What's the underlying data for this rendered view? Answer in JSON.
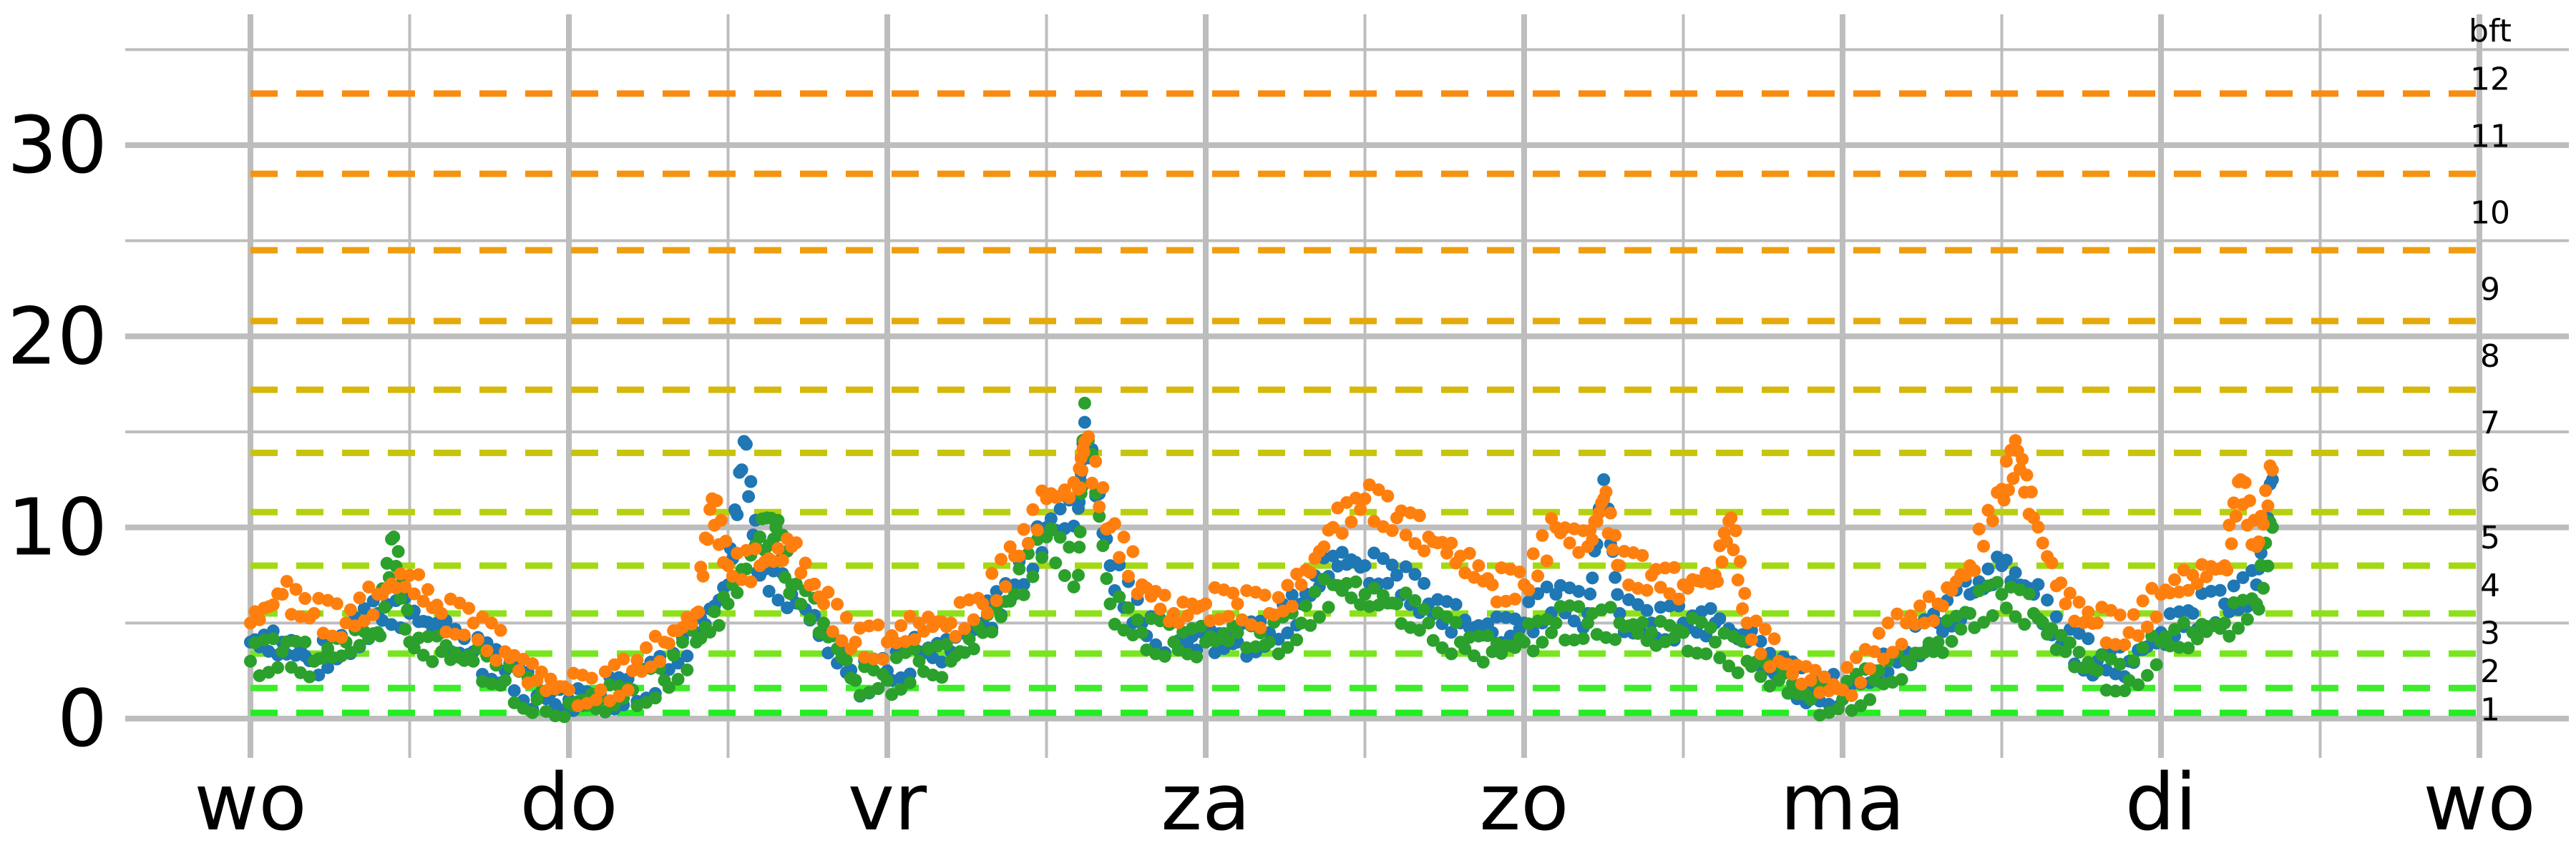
{
  "chart_data": {
    "type": "scatter",
    "title": "",
    "xlabel": "",
    "ylabel": "",
    "ylim": [
      -1.5,
      36
    ],
    "xlim": [
      0,
      7.5
    ],
    "y_ticks": [
      0,
      10,
      20,
      30
    ],
    "x_tick_labels": [
      "wo",
      "do",
      "vr",
      "za",
      "zo",
      "ma",
      "di",
      "wo"
    ],
    "x_ticks": [
      0,
      1,
      2,
      3,
      4,
      5,
      6,
      7
    ],
    "grid": true,
    "legend": "none",
    "beaufort": {
      "unit_label": "bft",
      "levels": [
        {
          "label": "1",
          "value": 0.3,
          "color": "#22ee22"
        },
        {
          "label": "2",
          "value": 1.6,
          "color": "#3cee2a"
        },
        {
          "label": "3",
          "value": 3.4,
          "color": "#78e61e"
        },
        {
          "label": "4",
          "value": 5.5,
          "color": "#8ee01a"
        },
        {
          "label": "5",
          "value": 8.0,
          "color": "#a4d812"
        },
        {
          "label": "6",
          "value": 10.8,
          "color": "#b8d010"
        },
        {
          "label": "7",
          "value": 13.9,
          "color": "#c6c40c"
        },
        {
          "label": "8",
          "value": 17.2,
          "color": "#d6b80a"
        },
        {
          "label": "9",
          "value": 20.8,
          "color": "#e4aa0c"
        },
        {
          "label": "10",
          "value": 24.5,
          "color": "#ef9e0e"
        },
        {
          "label": "11",
          "value": 28.5,
          "color": "#f49410"
        },
        {
          "label": "12",
          "value": 32.7,
          "color": "#f78c10"
        }
      ],
      "label_positions": [
        0.5,
        2.5,
        4.5,
        7.0,
        9.5,
        12.5,
        15.5,
        19.0,
        22.5,
        26.5,
        30.5,
        33.5
      ]
    },
    "series": [
      {
        "color": "#1f77b4",
        "points": [
          [
            0.0,
            4.0
          ],
          [
            0.1,
            4.0
          ],
          [
            0.2,
            3.0
          ],
          [
            0.3,
            4.0
          ],
          [
            0.4,
            5.5
          ],
          [
            0.5,
            5.5
          ],
          [
            0.6,
            4.5
          ],
          [
            0.7,
            3.5
          ],
          [
            0.8,
            2.5
          ],
          [
            0.9,
            1.2
          ],
          [
            1.0,
            1.0
          ],
          [
            1.1,
            1.2
          ],
          [
            1.2,
            1.5
          ],
          [
            1.3,
            2.5
          ],
          [
            1.4,
            4.5
          ],
          [
            1.5,
            7.0
          ],
          [
            1.55,
            14.5
          ],
          [
            1.6,
            7.5
          ],
          [
            1.7,
            6.5
          ],
          [
            1.8,
            4.5
          ],
          [
            1.9,
            2.0
          ],
          [
            2.0,
            2.5
          ],
          [
            2.1,
            3.5
          ],
          [
            2.2,
            3.5
          ],
          [
            2.3,
            5.0
          ],
          [
            2.4,
            7.0
          ],
          [
            2.5,
            10.0
          ],
          [
            2.6,
            11.0
          ],
          [
            2.62,
            15.5
          ],
          [
            2.7,
            8.0
          ],
          [
            2.8,
            5.0
          ],
          [
            2.9,
            4.0
          ],
          [
            3.0,
            4.0
          ],
          [
            3.1,
            4.0
          ],
          [
            3.2,
            4.5
          ],
          [
            3.3,
            6.0
          ],
          [
            3.4,
            8.5
          ],
          [
            3.5,
            8.0
          ],
          [
            3.6,
            7.5
          ],
          [
            3.7,
            6.0
          ],
          [
            3.8,
            5.0
          ],
          [
            3.9,
            4.5
          ],
          [
            4.0,
            5.0
          ],
          [
            4.1,
            6.5
          ],
          [
            4.2,
            5.5
          ],
          [
            4.25,
            12.5
          ],
          [
            4.3,
            5.5
          ],
          [
            4.4,
            5.0
          ],
          [
            4.5,
            5.0
          ],
          [
            4.6,
            5.0
          ],
          [
            4.7,
            4.0
          ],
          [
            4.8,
            2.5
          ],
          [
            4.9,
            1.5
          ],
          [
            5.0,
            1.5
          ],
          [
            5.1,
            2.5
          ],
          [
            5.2,
            3.5
          ],
          [
            5.3,
            5.0
          ],
          [
            5.4,
            6.5
          ],
          [
            5.5,
            8.0
          ],
          [
            5.6,
            6.5
          ],
          [
            5.7,
            4.0
          ],
          [
            5.8,
            3.0
          ],
          [
            5.9,
            3.0
          ],
          [
            6.0,
            4.5
          ],
          [
            6.1,
            5.5
          ],
          [
            6.2,
            6.0
          ],
          [
            6.3,
            7.0
          ],
          [
            6.35,
            12.5
          ]
        ]
      },
      {
        "color": "#2ca02c",
        "points": [
          [
            0.0,
            3.0
          ],
          [
            0.1,
            3.5
          ],
          [
            0.2,
            3.0
          ],
          [
            0.3,
            4.0
          ],
          [
            0.4,
            4.5
          ],
          [
            0.45,
            9.5
          ],
          [
            0.5,
            4.0
          ],
          [
            0.6,
            3.5
          ],
          [
            0.7,
            3.0
          ],
          [
            0.8,
            2.0
          ],
          [
            0.9,
            1.0
          ],
          [
            1.0,
            0.8
          ],
          [
            1.1,
            1.0
          ],
          [
            1.2,
            1.5
          ],
          [
            1.3,
            2.0
          ],
          [
            1.4,
            4.0
          ],
          [
            1.5,
            6.0
          ],
          [
            1.6,
            9.5
          ],
          [
            1.65,
            10.0
          ],
          [
            1.7,
            7.0
          ],
          [
            1.8,
            5.0
          ],
          [
            1.9,
            2.0
          ],
          [
            2.0,
            2.0
          ],
          [
            2.1,
            3.0
          ],
          [
            2.2,
            3.0
          ],
          [
            2.3,
            4.5
          ],
          [
            2.4,
            6.5
          ],
          [
            2.5,
            9.5
          ],
          [
            2.6,
            7.5
          ],
          [
            2.62,
            16.5
          ],
          [
            2.7,
            6.0
          ],
          [
            2.8,
            4.5
          ],
          [
            2.9,
            4.0
          ],
          [
            3.0,
            4.0
          ],
          [
            3.1,
            4.5
          ],
          [
            3.2,
            4.0
          ],
          [
            3.3,
            5.0
          ],
          [
            3.4,
            7.0
          ],
          [
            3.5,
            6.5
          ],
          [
            3.6,
            6.0
          ],
          [
            3.7,
            5.0
          ],
          [
            3.8,
            4.0
          ],
          [
            3.9,
            3.5
          ],
          [
            4.0,
            4.0
          ],
          [
            4.1,
            5.0
          ],
          [
            4.2,
            5.0
          ],
          [
            4.3,
            5.0
          ],
          [
            4.4,
            4.5
          ],
          [
            4.5,
            4.5
          ],
          [
            4.6,
            4.0
          ],
          [
            4.7,
            3.0
          ],
          [
            4.8,
            2.0
          ],
          [
            4.9,
            1.0
          ],
          [
            5.0,
            1.0
          ],
          [
            5.1,
            2.0
          ],
          [
            5.2,
            3.0
          ],
          [
            5.3,
            4.0
          ],
          [
            5.4,
            5.5
          ],
          [
            5.5,
            6.5
          ],
          [
            5.6,
            5.5
          ],
          [
            5.7,
            3.5
          ],
          [
            5.8,
            2.5
          ],
          [
            5.9,
            2.0
          ],
          [
            6.0,
            4.0
          ],
          [
            6.1,
            4.5
          ],
          [
            6.2,
            5.0
          ],
          [
            6.3,
            6.0
          ],
          [
            6.35,
            10.0
          ]
        ]
      },
      {
        "color": "#ff7f0e",
        "points": [
          [
            0.0,
            5.0
          ],
          [
            0.1,
            6.5
          ],
          [
            0.2,
            5.5
          ],
          [
            0.3,
            5.0
          ],
          [
            0.4,
            6.5
          ],
          [
            0.5,
            7.5
          ],
          [
            0.6,
            5.5
          ],
          [
            0.7,
            5.0
          ],
          [
            0.8,
            3.5
          ],
          [
            0.9,
            2.0
          ],
          [
            1.0,
            1.5
          ],
          [
            1.1,
            1.5
          ],
          [
            1.2,
            2.5
          ],
          [
            1.3,
            4.0
          ],
          [
            1.4,
            5.5
          ],
          [
            1.45,
            11.5
          ],
          [
            1.5,
            8.0
          ],
          [
            1.6,
            8.0
          ],
          [
            1.7,
            9.0
          ],
          [
            1.8,
            6.0
          ],
          [
            1.9,
            4.0
          ],
          [
            2.0,
            4.0
          ],
          [
            2.1,
            5.0
          ],
          [
            2.2,
            5.0
          ],
          [
            2.3,
            6.0
          ],
          [
            2.4,
            8.5
          ],
          [
            2.5,
            11.5
          ],
          [
            2.6,
            12.0
          ],
          [
            2.62,
            14.5
          ],
          [
            2.7,
            10.0
          ],
          [
            2.8,
            7.0
          ],
          [
            2.9,
            5.5
          ],
          [
            3.0,
            6.0
          ],
          [
            3.1,
            6.0
          ],
          [
            3.2,
            5.5
          ],
          [
            3.3,
            7.0
          ],
          [
            3.4,
            10.0
          ],
          [
            3.5,
            11.5
          ],
          [
            3.6,
            10.5
          ],
          [
            3.7,
            9.5
          ],
          [
            3.8,
            8.5
          ],
          [
            3.9,
            7.0
          ],
          [
            4.0,
            7.0
          ],
          [
            4.1,
            10.0
          ],
          [
            4.2,
            9.0
          ],
          [
            4.25,
            11.5
          ],
          [
            4.3,
            8.0
          ],
          [
            4.4,
            7.5
          ],
          [
            4.5,
            7.0
          ],
          [
            4.6,
            7.5
          ],
          [
            4.65,
            10.5
          ],
          [
            4.7,
            5.0
          ],
          [
            4.8,
            3.0
          ],
          [
            4.9,
            2.0
          ],
          [
            5.0,
            1.5
          ],
          [
            5.1,
            3.5
          ],
          [
            5.2,
            5.0
          ],
          [
            5.3,
            6.0
          ],
          [
            5.4,
            8.0
          ],
          [
            5.5,
            12.0
          ],
          [
            5.55,
            14.0
          ],
          [
            5.6,
            10.5
          ],
          [
            5.7,
            6.0
          ],
          [
            5.8,
            5.0
          ],
          [
            5.9,
            4.5
          ],
          [
            6.0,
            6.5
          ],
          [
            6.1,
            7.5
          ],
          [
            6.2,
            8.0
          ],
          [
            6.25,
            12.5
          ],
          [
            6.3,
            9.0
          ],
          [
            6.35,
            13.0
          ]
        ]
      }
    ]
  }
}
